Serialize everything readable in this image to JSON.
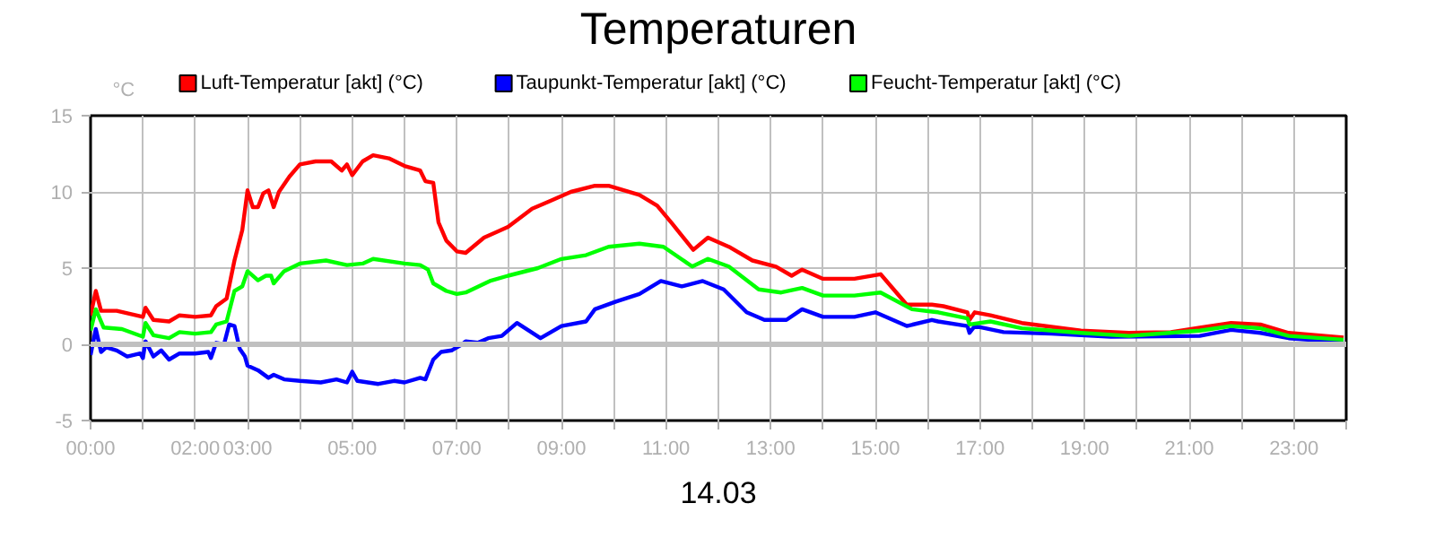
{
  "chart_data": {
    "type": "line",
    "title": "Temperaturen",
    "xlabel": "14.03",
    "ylabel": "°C",
    "xlim": [
      0,
      24
    ],
    "ylim": [
      -5,
      15
    ],
    "xticks": [
      {
        "value": 0,
        "label": "00:00"
      },
      {
        "value": 1,
        "label": null
      },
      {
        "value": 2,
        "label": "02:00"
      },
      {
        "value": 3,
        "label": "03:00"
      },
      {
        "value": 4,
        "label": null
      },
      {
        "value": 5,
        "label": "05:00"
      },
      {
        "value": 6,
        "label": null
      },
      {
        "value": 7,
        "label": "07:00"
      },
      {
        "value": 8,
        "label": null
      },
      {
        "value": 9,
        "label": "09:00"
      },
      {
        "value": 10,
        "label": null
      },
      {
        "value": 11,
        "label": "11:00"
      },
      {
        "value": 12,
        "label": null
      },
      {
        "value": 13,
        "label": "13:00"
      },
      {
        "value": 14,
        "label": null
      },
      {
        "value": 15,
        "label": "15:00"
      },
      {
        "value": 16,
        "label": null
      },
      {
        "value": 17,
        "label": "17:00"
      },
      {
        "value": 18,
        "label": null
      },
      {
        "value": 19,
        "label": "19:00"
      },
      {
        "value": 20,
        "label": null
      },
      {
        "value": 21,
        "label": "21:00"
      },
      {
        "value": 22,
        "label": null
      },
      {
        "value": 23,
        "label": "23:00"
      },
      {
        "value": 24,
        "label": null
      }
    ],
    "yticks": [
      -5,
      0,
      5,
      10,
      15
    ],
    "grid": true,
    "legend": "top left",
    "marker": "none",
    "line_style": "solid",
    "ref_lines": [
      {
        "axis": "y",
        "value": 0,
        "label": null,
        "color": "#c0c0c0"
      }
    ],
    "series": [
      {
        "name": "Luft-Temperatur [akt] (°C)",
        "color": "#ff0000",
        "x": [
          0,
          0.1,
          0.2,
          0.5,
          1,
          1.05,
          1.2,
          1.5,
          1.7,
          2,
          2.3,
          2.4,
          2.6,
          2.75,
          2.9,
          3,
          3.1,
          3.2,
          3.3,
          3.4,
          3.5,
          3.6,
          3.8,
          4,
          4.3,
          4.6,
          4.8,
          4.9,
          5,
          5.2,
          5.4,
          5.7,
          6,
          6.3,
          6.4,
          6.55,
          6.65,
          6.8,
          7,
          7.17,
          7.52,
          7.98,
          8.44,
          8.78,
          9.18,
          9.64,
          9.9,
          10.49,
          10.83,
          11.12,
          11.52,
          11.8,
          12.2,
          12.65,
          13.1,
          13.4,
          13.6,
          14,
          14.6,
          15.1,
          15.6,
          16.08,
          16.3,
          16.76,
          16.8,
          16.9,
          17.2,
          17.8,
          18.93,
          19.85,
          20.65,
          21.2,
          21.8,
          22.36,
          22.9,
          23.95
        ],
        "values": [
          1.9,
          3.5,
          2.2,
          2.2,
          1.8,
          2.4,
          1.6,
          1.5,
          1.9,
          1.8,
          1.9,
          2.5,
          3,
          5.5,
          7.5,
          10.1,
          9,
          9,
          9.9,
          10.1,
          9,
          10,
          11,
          11.8,
          12,
          12,
          11.4,
          11.8,
          11.1,
          12,
          12.4,
          12.2,
          11.7,
          11.4,
          10.7,
          10.6,
          8,
          6.8,
          6.1,
          6,
          7,
          7.7,
          8.9,
          9.4,
          10,
          10.4,
          10.4,
          9.8,
          9.1,
          7.9,
          6.2,
          7,
          6.4,
          5.5,
          5.1,
          4.5,
          4.9,
          4.3,
          4.3,
          4.6,
          2.6,
          2.6,
          2.5,
          2.1,
          1.6,
          2.1,
          1.9,
          1.4,
          0.9,
          0.75,
          0.8,
          1.1,
          1.4,
          1.3,
          0.75,
          0.45
        ]
      },
      {
        "name": "Taupunkt-Temperatur [akt] (°C)",
        "color": "#0000ff",
        "x": [
          0,
          0.1,
          0.2,
          0.3,
          0.5,
          0.7,
          0.95,
          1,
          1.05,
          1.2,
          1.35,
          1.5,
          1.7,
          2,
          2.25,
          2.3,
          2.4,
          2.55,
          2.65,
          2.75,
          2.85,
          2.95,
          3,
          3.2,
          3.4,
          3.5,
          3.7,
          4,
          4.4,
          4.7,
          4.9,
          5,
          5.1,
          5.5,
          5.8,
          6,
          6.3,
          6.4,
          6.55,
          6.7,
          6.9,
          7.1,
          7.17,
          7.4,
          7.6,
          7.86,
          8.15,
          8.6,
          9,
          9.47,
          9.64,
          10.04,
          10.49,
          10.9,
          11.3,
          11.7,
          12.1,
          12.54,
          12.88,
          13.3,
          13.6,
          14,
          14.6,
          15,
          15.6,
          16.08,
          16.2,
          16.76,
          16.8,
          16.9,
          17.45,
          18.36,
          19.5,
          21.2,
          21.8,
          22.36,
          22.9,
          23.95
        ],
        "values": [
          -0.7,
          1,
          -0.5,
          -0.2,
          -0.4,
          -0.8,
          -0.6,
          -0.9,
          0.2,
          -0.8,
          -0.4,
          -1,
          -0.6,
          -0.6,
          -0.5,
          -0.9,
          0.1,
          0,
          1.3,
          1.2,
          -0.3,
          -0.8,
          -1.4,
          -1.7,
          -2.2,
          -2,
          -2.3,
          -2.4,
          -2.5,
          -2.3,
          -2.5,
          -1.8,
          -2.4,
          -2.6,
          -2.4,
          -2.5,
          -2.2,
          -2.3,
          -1,
          -0.5,
          -0.4,
          0,
          0.2,
          0.1,
          0.4,
          0.55,
          1.4,
          0.4,
          1.2,
          1.5,
          2.3,
          2.8,
          3.3,
          4.15,
          3.8,
          4.15,
          3.6,
          2.1,
          1.6,
          1.6,
          2.3,
          1.8,
          1.8,
          2.1,
          1.2,
          1.6,
          1.5,
          1.2,
          0.75,
          1.2,
          0.8,
          0.7,
          0.5,
          0.55,
          0.95,
          0.75,
          0.4,
          0.15
        ]
      },
      {
        "name": "Feucht-Temperatur [akt] (°C)",
        "color": "#00ff00",
        "x": [
          0,
          0.1,
          0.25,
          0.6,
          1,
          1.05,
          1.2,
          1.5,
          1.7,
          2,
          2.3,
          2.4,
          2.6,
          2.75,
          2.9,
          3,
          3.2,
          3.35,
          3.45,
          3.5,
          3.7,
          4,
          4.5,
          4.9,
          5.2,
          5.4,
          6,
          6.3,
          6.45,
          6.55,
          6.8,
          7,
          7.17,
          7.63,
          7.98,
          8.55,
          9,
          9.47,
          9.9,
          10.49,
          10.95,
          11.5,
          11.8,
          12.2,
          12.77,
          13.2,
          13.6,
          14,
          14.6,
          15.1,
          15.7,
          16.08,
          16.2,
          16.76,
          16.8,
          17.2,
          17.8,
          18.93,
          19.85,
          21.2,
          21.8,
          22.36,
          22.9,
          23.95
        ],
        "values": [
          0.9,
          2.3,
          1.1,
          1,
          0.5,
          1.4,
          0.6,
          0.4,
          0.8,
          0.7,
          0.8,
          1.3,
          1.5,
          3.5,
          3.8,
          4.8,
          4.2,
          4.5,
          4.5,
          4,
          4.8,
          5.3,
          5.5,
          5.2,
          5.3,
          5.6,
          5.3,
          5.2,
          4.9,
          4,
          3.5,
          3.3,
          3.4,
          4.15,
          4.5,
          5,
          5.6,
          5.85,
          6.4,
          6.6,
          6.4,
          5.1,
          5.6,
          5.1,
          3.6,
          3.4,
          3.7,
          3.2,
          3.2,
          3.4,
          2.3,
          2.15,
          2.1,
          1.7,
          1.3,
          1.5,
          1.05,
          0.75,
          0.55,
          0.9,
          1.2,
          1.05,
          0.55,
          0.3
        ]
      }
    ]
  }
}
